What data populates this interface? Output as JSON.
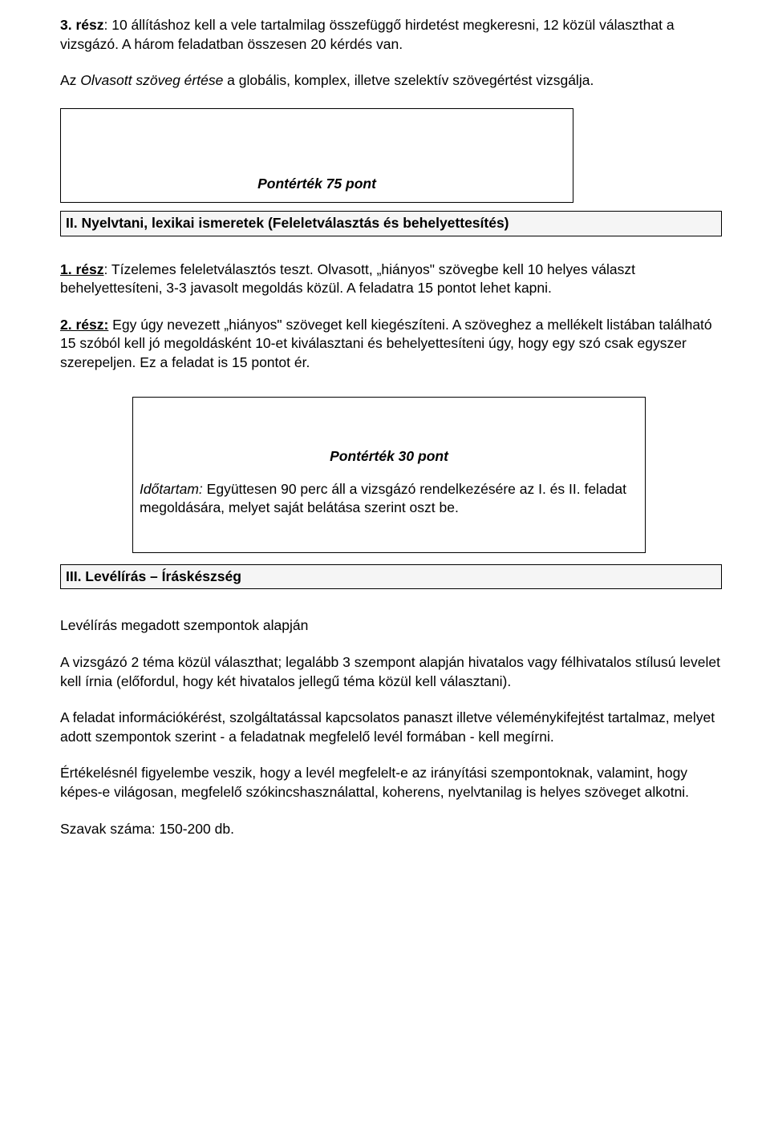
{
  "p1": "3. rész: 10 állításhoz kell a vele tartalmilag összefüggő hirdetést megkeresni, 12 közül választhat a vizsgázó. A három feladatban összesen 20 kérdés van.",
  "p2_pre": "Az ",
  "p2_it": "Olvasott szöveg értése",
  "p2_post": " a globális, komplex, illetve szelektív szövegértést vizsgálja.",
  "score1": "Pontérték 75 pont",
  "band1": "II. Nyelvtani, lexikai ismeretek (Feleletválasztás és behelyettesítés)",
  "p3": "1. rész: Tízelemes feleletválasztós teszt. Olvasott, „hiányos\" szövegbe kell 10 helyes választ behelyettesíteni, 3-3 javasolt megoldás közül. A feladatra 15 pontot lehet kapni.",
  "p4": "2. rész: Egy úgy nevezett „hiányos\" szöveget kell kiegészíteni. A szöveghez a mellékelt listában található 15 szóból kell jó megoldásként 10-et kiválasztani és behelyettesíteni úgy, hogy egy szó csak egyszer szerepeljen. Ez a feladat is 15 pontot ér.",
  "score2": "Pontérték 30 pont",
  "dur_it": "Időtartam:",
  "dur_rest": " Együttesen 90 perc áll a vizsgázó rendelkezésére az I. és II. feladat megoldására, melyet saját belátása szerint oszt be.",
  "band2": "III. Levélírás – Íráskészség",
  "p5": "Levélírás megadott szempontok alapján",
  "p6": "A vizsgázó 2 téma közül választhat; legalább 3 szempont alapján hivatalos vagy félhivatalos stílusú levelet kell írnia (előfordul, hogy két hivatalos jellegű téma közül kell választani).",
  "p7": "A feladat információkérést, szolgáltatással kapcsolatos panaszt illetve véleménykifejtést tartalmaz, melyet adott szempontok szerint - a feladatnak megfelelő levél formában - kell megírni.",
  "p8": "Értékelésnél figyelembe veszik, hogy a levél megfelelt-e az irányítási szempontoknak, valamint, hogy képes-e világosan, megfelelő szókincshasználattal, koherens, nyelvtanilag is helyes szöveget alkotni.",
  "p9": "Szavak száma: 150-200 db."
}
